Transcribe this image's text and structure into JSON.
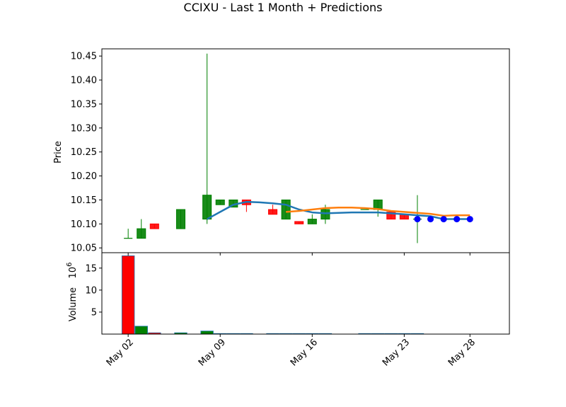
{
  "chart_data": {
    "type": "candlestick",
    "title": "CCIXU - Last 1 Month + Predictions",
    "price_panel": {
      "ylabel": "Price",
      "ylim": [
        10.04,
        10.465
      ],
      "yticks": [
        "10.05",
        "10.10",
        "10.15",
        "10.20",
        "10.25",
        "10.30",
        "10.35",
        "10.40",
        "10.45"
      ],
      "candles": [
        {
          "date": "2024-05-02",
          "open": 10.07,
          "high": 10.09,
          "low": 10.07,
          "close": 10.07
        },
        {
          "date": "2024-05-03",
          "open": 10.07,
          "high": 10.11,
          "low": 10.07,
          "close": 10.09
        },
        {
          "date": "2024-05-04",
          "open": 10.1,
          "high": 10.1,
          "low": 10.09,
          "close": 10.09
        },
        {
          "date": "2024-05-06",
          "open": 10.09,
          "high": 10.13,
          "low": 10.09,
          "close": 10.13
        },
        {
          "date": "2024-05-08",
          "open": 10.11,
          "high": 10.455,
          "low": 10.1,
          "close": 10.16
        },
        {
          "date": "2024-05-09",
          "open": 10.14,
          "high": 10.15,
          "low": 10.14,
          "close": 10.15
        },
        {
          "date": "2024-05-10",
          "open": 10.135,
          "high": 10.15,
          "low": 10.135,
          "close": 10.15
        },
        {
          "date": "2024-05-11",
          "open": 10.15,
          "high": 10.15,
          "low": 10.125,
          "close": 10.14
        },
        {
          "date": "2024-05-13",
          "open": 10.13,
          "high": 10.14,
          "low": 10.12,
          "close": 10.12
        },
        {
          "date": "2024-05-14",
          "open": 10.11,
          "high": 10.15,
          "low": 10.11,
          "close": 10.15
        },
        {
          "date": "2024-05-15",
          "open": 10.105,
          "high": 10.105,
          "low": 10.1,
          "close": 10.1
        },
        {
          "date": "2024-05-16",
          "open": 10.1,
          "high": 10.12,
          "low": 10.1,
          "close": 10.11
        },
        {
          "date": "2024-05-17",
          "open": 10.11,
          "high": 10.14,
          "low": 10.1,
          "close": 10.13
        },
        {
          "date": "2024-05-20",
          "open": 10.13,
          "high": 10.13,
          "low": 10.13,
          "close": 10.13
        },
        {
          "date": "2024-05-21",
          "open": 10.13,
          "high": 10.15,
          "low": 10.115,
          "close": 10.15
        },
        {
          "date": "2024-05-22",
          "open": 10.125,
          "high": 10.125,
          "low": 10.11,
          "close": 10.11
        },
        {
          "date": "2024-05-23",
          "open": 10.12,
          "high": 10.12,
          "low": 10.11,
          "close": 10.11
        },
        {
          "date": "2024-05-24",
          "open": 10.11,
          "high": 10.16,
          "low": 10.06,
          "close": 10.11
        }
      ],
      "up_color": "#008000",
      "down_color": "#ff0000",
      "prediction_points": {
        "color": "#0000ff",
        "points": [
          {
            "date": "2024-05-24",
            "value": 10.11
          },
          {
            "date": "2024-05-25",
            "value": 10.11
          },
          {
            "date": "2024-05-26",
            "value": 10.11
          },
          {
            "date": "2024-05-27",
            "value": 10.11
          },
          {
            "date": "2024-05-28",
            "value": 10.11
          }
        ]
      },
      "lines": [
        {
          "color": "#1f77b4",
          "points": [
            {
              "date": "2024-05-08",
              "value": 10.11
            },
            {
              "date": "2024-05-09",
              "value": 10.125
            },
            {
              "date": "2024-05-10",
              "value": 10.14
            },
            {
              "date": "2024-05-11",
              "value": 10.146
            },
            {
              "date": "2024-05-12",
              "value": 10.145
            },
            {
              "date": "2024-05-13",
              "value": 10.143
            },
            {
              "date": "2024-05-14",
              "value": 10.14
            },
            {
              "date": "2024-05-15",
              "value": 10.13
            },
            {
              "date": "2024-05-16",
              "value": 10.124
            },
            {
              "date": "2024-05-17",
              "value": 10.122
            },
            {
              "date": "2024-05-18",
              "value": 10.123
            },
            {
              "date": "2024-05-19",
              "value": 10.124
            },
            {
              "date": "2024-05-20",
              "value": 10.124
            },
            {
              "date": "2024-05-21",
              "value": 10.124
            },
            {
              "date": "2024-05-22",
              "value": 10.122
            },
            {
              "date": "2024-05-23",
              "value": 10.12
            },
            {
              "date": "2024-05-24",
              "value": 10.118
            },
            {
              "date": "2024-05-25",
              "value": 10.116
            },
            {
              "date": "2024-05-26",
              "value": 10.11
            },
            {
              "date": "2024-05-27",
              "value": 10.11
            },
            {
              "date": "2024-05-28",
              "value": 10.11
            }
          ]
        },
        {
          "color": "#ff7f0e",
          "points": [
            {
              "date": "2024-05-14",
              "value": 10.125
            },
            {
              "date": "2024-05-15",
              "value": 10.127
            },
            {
              "date": "2024-05-16",
              "value": 10.13
            },
            {
              "date": "2024-05-17",
              "value": 10.133
            },
            {
              "date": "2024-05-18",
              "value": 10.134
            },
            {
              "date": "2024-05-19",
              "value": 10.134
            },
            {
              "date": "2024-05-20",
              "value": 10.133
            },
            {
              "date": "2024-05-21",
              "value": 10.131
            },
            {
              "date": "2024-05-22",
              "value": 10.127
            },
            {
              "date": "2024-05-23",
              "value": 10.125
            },
            {
              "date": "2024-05-24",
              "value": 10.123
            },
            {
              "date": "2024-05-25",
              "value": 10.121
            },
            {
              "date": "2024-05-26",
              "value": 10.117
            },
            {
              "date": "2024-05-27",
              "value": 10.118
            },
            {
              "date": "2024-05-28",
              "value": 10.118
            }
          ]
        }
      ]
    },
    "volume_panel": {
      "ylabel": "Volume",
      "offset_label": "10^6",
      "ylim": [
        0,
        18.5
      ],
      "yticks": [
        "5",
        "10",
        "15"
      ],
      "bars": [
        {
          "date": "2024-05-02",
          "value": 17.8,
          "color": "#ff0000"
        },
        {
          "date": "2024-05-03",
          "value": 1.8,
          "color": "#008000"
        },
        {
          "date": "2024-05-04",
          "value": 0.3,
          "color": "#ff0000"
        },
        {
          "date": "2024-05-06",
          "value": 0.3,
          "color": "#008000"
        },
        {
          "date": "2024-05-08",
          "value": 0.7,
          "color": "#008000"
        },
        {
          "date": "2024-05-09",
          "value": 0.05,
          "color": "#008000"
        },
        {
          "date": "2024-05-10",
          "value": 0.05,
          "color": "#008000"
        },
        {
          "date": "2024-05-11",
          "value": 0.03,
          "color": "#ff0000"
        },
        {
          "date": "2024-05-13",
          "value": 0.03,
          "color": "#ff0000"
        },
        {
          "date": "2024-05-14",
          "value": 0.05,
          "color": "#008000"
        },
        {
          "date": "2024-05-15",
          "value": 0.03,
          "color": "#ff0000"
        },
        {
          "date": "2024-05-16",
          "value": 0.03,
          "color": "#008000"
        },
        {
          "date": "2024-05-17",
          "value": 0.03,
          "color": "#008000"
        },
        {
          "date": "2024-05-20",
          "value": 0.03,
          "color": "#ff0000"
        },
        {
          "date": "2024-05-21",
          "value": 0.03,
          "color": "#008000"
        },
        {
          "date": "2024-05-22",
          "value": 0.03,
          "color": "#ff0000"
        },
        {
          "date": "2024-05-23",
          "value": 0.03,
          "color": "#ff0000"
        },
        {
          "date": "2024-05-24",
          "value": 0.03,
          "color": "#ff0000"
        }
      ]
    },
    "x_axis": {
      "range": [
        "2024-04-30",
        "2024-05-31"
      ],
      "ticks": [
        {
          "date": "2024-05-02",
          "label": "May 02"
        },
        {
          "date": "2024-05-09",
          "label": "May 09"
        },
        {
          "date": "2024-05-16",
          "label": "May 16"
        },
        {
          "date": "2024-05-23",
          "label": "May 23"
        },
        {
          "date": "2024-05-28",
          "label": "May 28"
        }
      ]
    }
  }
}
